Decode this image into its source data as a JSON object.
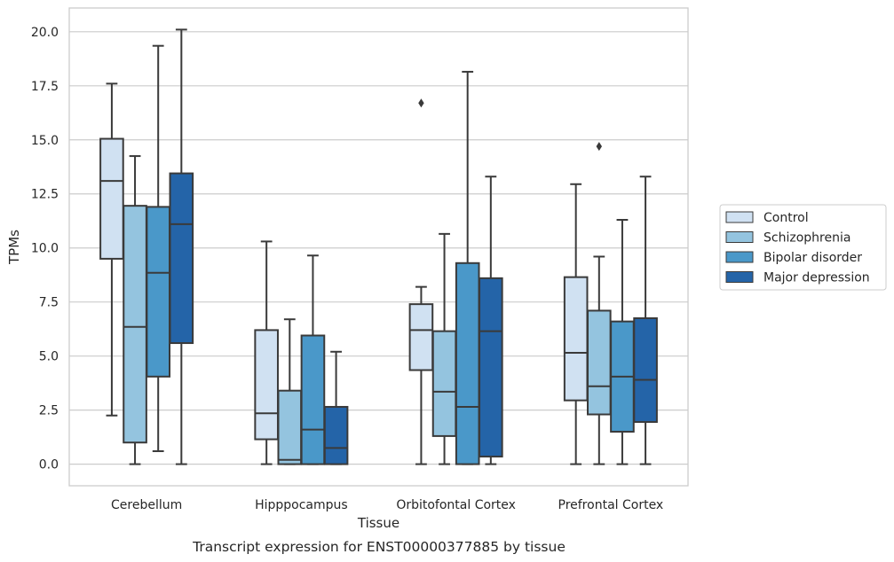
{
  "chart_data": {
    "type": "box",
    "xlabel": "Tissue",
    "ylabel": "TPMs",
    "caption": "Transcript expression for ENST00000377885 by tissue",
    "ylim": [
      -1.0,
      21.1
    ],
    "yticks": [
      "0.0",
      "2.5",
      "5.0",
      "7.5",
      "10.0",
      "12.5",
      "15.0",
      "17.5",
      "20.0"
    ],
    "grid": "horizontal",
    "legend_position": "right",
    "categories": [
      "Cerebellum",
      "Hipppocampus",
      "Orbitofontal Cortex",
      "Prefrontal Cortex"
    ],
    "series": [
      {
        "name": "Control",
        "color": "#d0e1f2",
        "boxes": [
          {
            "whisker_low": 2.25,
            "q1": 9.5,
            "median": 13.1,
            "q3": 15.05,
            "whisker_high": 17.6,
            "outliers": []
          },
          {
            "whisker_low": 0.0,
            "q1": 1.15,
            "median": 2.35,
            "q3": 6.2,
            "whisker_high": 10.3,
            "outliers": []
          },
          {
            "whisker_low": 0.0,
            "q1": 4.35,
            "median": 6.2,
            "q3": 7.4,
            "whisker_high": 8.2,
            "outliers": [
              16.7
            ]
          },
          {
            "whisker_low": 0.0,
            "q1": 2.95,
            "median": 5.15,
            "q3": 8.65,
            "whisker_high": 12.95,
            "outliers": []
          }
        ]
      },
      {
        "name": "Schizophrenia",
        "color": "#94c4df",
        "boxes": [
          {
            "whisker_low": 0.0,
            "q1": 1.0,
            "median": 6.35,
            "q3": 11.95,
            "whisker_high": 14.25,
            "outliers": []
          },
          {
            "whisker_low": 0.0,
            "q1": 0.0,
            "median": 0.2,
            "q3": 3.4,
            "whisker_high": 6.7,
            "outliers": []
          },
          {
            "whisker_low": 0.0,
            "q1": 1.3,
            "median": 3.35,
            "q3": 6.15,
            "whisker_high": 10.65,
            "outliers": []
          },
          {
            "whisker_low": 0.0,
            "q1": 2.3,
            "median": 3.6,
            "q3": 7.1,
            "whisker_high": 9.6,
            "outliers": [
              14.7
            ]
          }
        ]
      },
      {
        "name": "Bipolar disorder",
        "color": "#4a98c9",
        "boxes": [
          {
            "whisker_low": 0.6,
            "q1": 4.05,
            "median": 8.85,
            "q3": 11.9,
            "whisker_high": 19.35,
            "outliers": []
          },
          {
            "whisker_low": 0.0,
            "q1": 0.0,
            "median": 1.6,
            "q3": 5.95,
            "whisker_high": 9.65,
            "outliers": []
          },
          {
            "whisker_low": 0.0,
            "q1": 0.0,
            "median": 2.65,
            "q3": 9.3,
            "whisker_high": 18.15,
            "outliers": []
          },
          {
            "whisker_low": 0.0,
            "q1": 1.5,
            "median": 4.05,
            "q3": 6.6,
            "whisker_high": 11.3,
            "outliers": []
          }
        ]
      },
      {
        "name": "Major depression",
        "color": "#2464a8",
        "boxes": [
          {
            "whisker_low": 0.0,
            "q1": 5.6,
            "median": 11.1,
            "q3": 13.45,
            "whisker_high": 20.1,
            "outliers": []
          },
          {
            "whisker_low": 0.0,
            "q1": 0.0,
            "median": 0.75,
            "q3": 2.65,
            "whisker_high": 5.2,
            "outliers": []
          },
          {
            "whisker_low": 0.0,
            "q1": 0.35,
            "median": 6.15,
            "q3": 8.6,
            "whisker_high": 13.3,
            "outliers": []
          },
          {
            "whisker_low": 0.0,
            "q1": 1.95,
            "median": 3.9,
            "q3": 6.75,
            "whisker_high": 13.3,
            "outliers": []
          }
        ]
      }
    ]
  }
}
